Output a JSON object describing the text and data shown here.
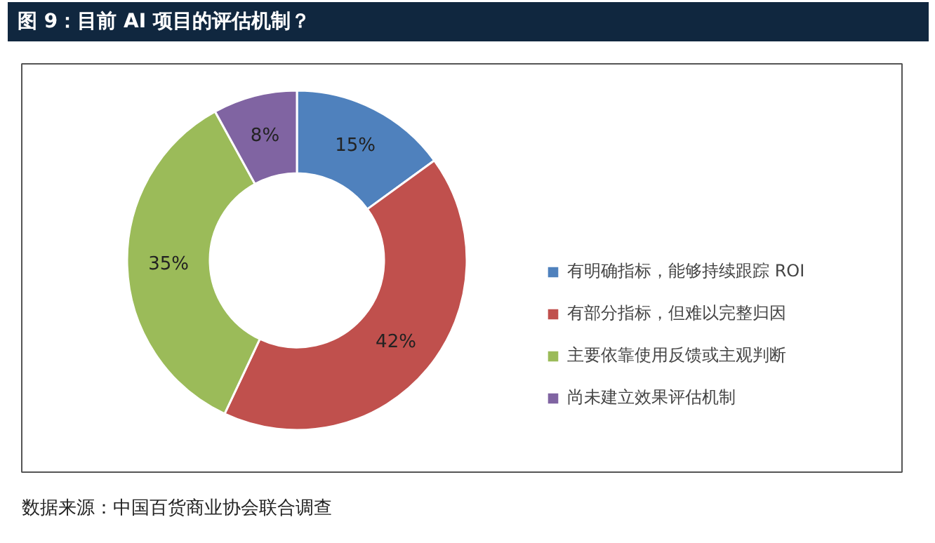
{
  "chart_data": {
    "type": "donut",
    "title": "图 9：目前 AI 项目的评估机制？",
    "categories": [
      "有明确指标，能够持续跟踪 ROI",
      "有部分指标，但难以完整归因",
      "主要依靠使用反馈或主观判断",
      "尚未建立效果评估机制"
    ],
    "values": [
      15,
      42,
      35,
      8
    ],
    "colors": [
      "#4f81bd",
      "#c0504d",
      "#9bbb59",
      "#8064a2"
    ],
    "value_labels": [
      "15%",
      "42%",
      "35%",
      "8%"
    ],
    "legend": "right",
    "annotations": [
      "数据来源：中国百货商业协会联合调查"
    ]
  }
}
